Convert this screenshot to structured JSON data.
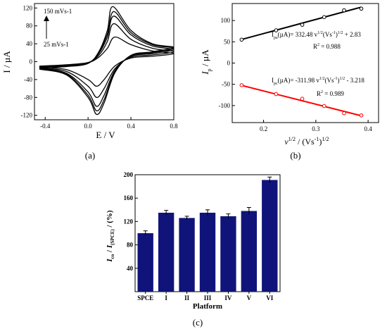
{
  "panels": {
    "a": {
      "label": "(a)"
    },
    "b": {
      "label": "(b)"
    },
    "c": {
      "label": "(c)"
    }
  },
  "chart_data": [
    {
      "id": "a",
      "type": "line",
      "title": "",
      "xlabel": "E / V",
      "ylabel": "I / µA",
      "xlim": [
        -0.5,
        0.8
      ],
      "ylim": [
        -130,
        130
      ],
      "xticks": [
        -0.4,
        0.0,
        0.4,
        0.8
      ],
      "xtick_labels": [
        "-0.4",
        "0.0",
        "0.4",
        "0.8"
      ],
      "yticks": [
        -120,
        -80,
        -40,
        0,
        40,
        80,
        120
      ],
      "ytick_labels": [
        "-120",
        "-80",
        "-40",
        "0",
        "40",
        "80",
        "120"
      ],
      "annotations": [
        "150 mVs-1",
        "25 mVs-1"
      ],
      "series": [
        {
          "scan_rate_mVs": 25,
          "E": [
            -0.45,
            -0.2,
            0.0,
            0.1,
            0.18,
            0.25,
            0.4,
            0.6,
            0.8,
            0.6,
            0.4,
            0.25,
            0.15,
            0.08,
            0.0,
            -0.2,
            -0.45
          ],
          "I": [
            -10,
            -7,
            -2,
            10,
            30,
            55,
            38,
            24,
            18,
            12,
            8,
            -10,
            -40,
            -55,
            -40,
            -18,
            -12
          ]
        },
        {
          "scan_rate_mVs": 50,
          "E": [
            -0.45,
            -0.2,
            0.0,
            0.1,
            0.18,
            0.24,
            0.4,
            0.6,
            0.8,
            0.6,
            0.4,
            0.25,
            0.15,
            0.08,
            0.0,
            -0.2,
            -0.45
          ],
          "I": [
            -11,
            -8,
            -2,
            14,
            45,
            85,
            50,
            30,
            22,
            15,
            10,
            -16,
            -60,
            -80,
            -55,
            -22,
            -14
          ]
        },
        {
          "scan_rate_mVs": 100,
          "E": [
            -0.45,
            -0.2,
            0.0,
            0.1,
            0.18,
            0.24,
            0.4,
            0.6,
            0.8,
            0.6,
            0.4,
            0.25,
            0.15,
            0.08,
            0.0,
            -0.2,
            -0.45
          ],
          "I": [
            -12,
            -9,
            -3,
            18,
            55,
            102,
            60,
            35,
            27,
            18,
            12,
            -20,
            -75,
            -100,
            -68,
            -26,
            -15
          ]
        },
        {
          "scan_rate_mVs": 125,
          "E": [
            -0.45,
            -0.2,
            0.0,
            0.1,
            0.18,
            0.24,
            0.4,
            0.6,
            0.8,
            0.6,
            0.4,
            0.25,
            0.15,
            0.08,
            0.0,
            -0.2,
            -0.45
          ],
          "I": [
            -13,
            -10,
            -3,
            20,
            62,
            112,
            65,
            38,
            30,
            20,
            13,
            -23,
            -85,
            -110,
            -75,
            -28,
            -16
          ]
        },
        {
          "scan_rate_mVs": 150,
          "E": [
            -0.45,
            -0.2,
            0.0,
            0.1,
            0.18,
            0.23,
            0.4,
            0.6,
            0.8,
            0.6,
            0.4,
            0.25,
            0.15,
            0.08,
            0.0,
            -0.2,
            -0.45
          ],
          "I": [
            -14,
            -11,
            -4,
            22,
            70,
            123,
            70,
            40,
            32,
            22,
            14,
            -25,
            -92,
            -118,
            -80,
            -30,
            -17
          ]
        }
      ]
    },
    {
      "id": "b",
      "type": "scatter",
      "title": "",
      "xlabel": "v1/2 / (Vs-1)1/2",
      "ylabel": "Ip / µA",
      "xlim": [
        0.14,
        0.42
      ],
      "ylim": [
        -140,
        140
      ],
      "xticks": [
        0.2,
        0.3,
        0.4
      ],
      "xtick_labels": [
        "0.2",
        "0.3",
        "0.4"
      ],
      "yticks": [
        -100,
        -50,
        0,
        50,
        100
      ],
      "ytick_labels": [
        "-100",
        "-50",
        "0",
        "50",
        "100"
      ],
      "equations": [
        {
          "text_pre": "I",
          "sub": "pa",
          "text_post": "(µA)= 332.48 v",
          "sup1": "1/2",
          "mid": "(Vs",
          "sup2": "-1",
          "end": ")",
          "sup3": "1/2",
          "tail": " + 2.83",
          "r2_label": "R",
          "r2_sup": "2",
          "r2_val": " = 0.988"
        },
        {
          "text_pre": "I",
          "sub": "pc",
          "text_post": "(µA)= -311.98 v",
          "sup1": "1/2",
          "mid": "(Vs",
          "sup2": "-1",
          "end": ")",
          "sup3": "1/2",
          "tail": " - 3.218",
          "r2_label": "R",
          "r2_sup": "2",
          "r2_val": " = 0.989"
        }
      ],
      "series": [
        {
          "color": "#000000",
          "x": [
            0.158,
            0.224,
            0.274,
            0.316,
            0.354,
            0.387
          ],
          "y": [
            55,
            77,
            90,
            108,
            124,
            128
          ],
          "fit": {
            "slope": 332.48,
            "intercept": 2.83
          }
        },
        {
          "color": "#ff0000",
          "x": [
            0.158,
            0.224,
            0.274,
            0.316,
            0.354,
            0.387
          ],
          "y": [
            -52,
            -73,
            -84,
            -101,
            -118,
            -123
          ],
          "fit": {
            "slope": -311.98,
            "intercept": -3.218
          }
        }
      ]
    },
    {
      "id": "c",
      "type": "bar",
      "title": "",
      "xlabel": "Platform",
      "ylabel": "Ico / I(SPCE) / (%)",
      "categories": [
        "SPCE",
        "I",
        "II",
        "III",
        "IV",
        "V",
        "VI"
      ],
      "values": [
        100,
        135,
        126,
        135,
        129,
        138,
        191
      ],
      "errors": [
        4,
        4,
        3,
        5,
        4,
        6,
        5
      ],
      "ylim": [
        0,
        200
      ],
      "yticks": [
        40,
        80,
        120,
        160,
        200
      ],
      "ytick_labels": [
        "40",
        "80",
        "120",
        "160",
        "200"
      ],
      "bar_color": "#10147a"
    }
  ]
}
